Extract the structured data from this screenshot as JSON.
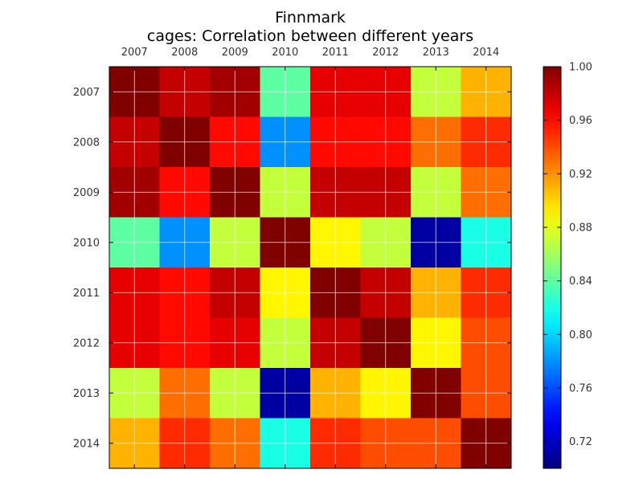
{
  "chart_data": {
    "type": "heatmap",
    "title": "Finnmark",
    "subtitle": "cages: Correlation between different years",
    "x_categories": [
      "2007",
      "2008",
      "2009",
      "2010",
      "2011",
      "2012",
      "2013",
      "2014"
    ],
    "y_categories": [
      "2007",
      "2008",
      "2009",
      "2010",
      "2011",
      "2012",
      "2013",
      "2014"
    ],
    "values": [
      [
        1.0,
        0.98,
        0.99,
        0.84,
        0.97,
        0.97,
        0.87,
        0.91
      ],
      [
        0.98,
        1.0,
        0.96,
        0.78,
        0.96,
        0.96,
        0.93,
        0.95
      ],
      [
        0.99,
        0.96,
        1.0,
        0.87,
        0.98,
        0.98,
        0.87,
        0.93
      ],
      [
        0.84,
        0.78,
        0.87,
        1.0,
        0.89,
        0.87,
        0.71,
        0.82
      ],
      [
        0.97,
        0.96,
        0.98,
        0.89,
        1.0,
        0.98,
        0.91,
        0.95
      ],
      [
        0.97,
        0.96,
        0.97,
        0.87,
        0.98,
        1.0,
        0.89,
        0.94
      ],
      [
        0.87,
        0.93,
        0.87,
        0.71,
        0.91,
        0.89,
        1.0,
        0.94
      ],
      [
        0.91,
        0.95,
        0.93,
        0.82,
        0.95,
        0.94,
        0.94,
        1.0
      ]
    ],
    "colorbar": {
      "min": 0.7,
      "max": 1.0,
      "ticks": [
        0.72,
        0.76,
        0.8,
        0.84,
        0.88,
        0.92,
        0.96,
        1.0
      ],
      "tick_labels": [
        "0.72",
        "0.76",
        "0.80",
        "0.84",
        "0.88",
        "0.92",
        "0.96",
        "1.00"
      ],
      "colormap": "jet"
    },
    "grid": true,
    "x_axis_position": "top"
  }
}
